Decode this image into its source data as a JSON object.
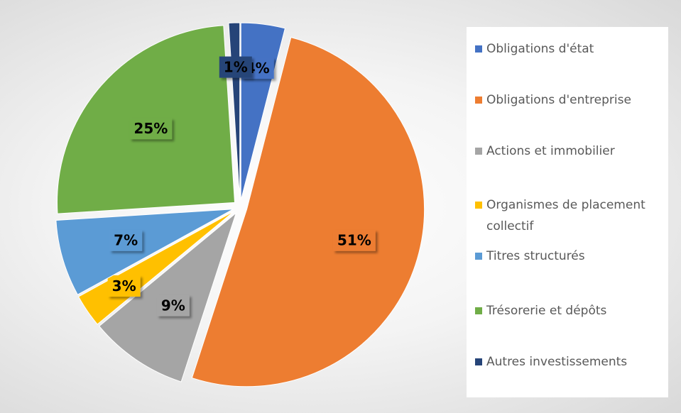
{
  "chart_data": {
    "type": "pie",
    "categories": [
      "Obligations d'état",
      "Obligations d'entreprise",
      "Actions et immobilier",
      "Organismes de placement collectif",
      "Titres structurés",
      "Trésorerie et dépôts",
      "Autres investissements"
    ],
    "values": [
      4,
      51,
      9,
      3,
      7,
      25,
      1
    ],
    "value_labels": [
      "4%",
      "51%",
      "9%",
      "3%",
      "7%",
      "25%",
      "1%"
    ],
    "colors": [
      "#4472c4",
      "#ed7d31",
      "#a5a5a5",
      "#ffc000",
      "#5b9bd5",
      "#70ad47",
      "#264478"
    ],
    "legend": "right"
  }
}
